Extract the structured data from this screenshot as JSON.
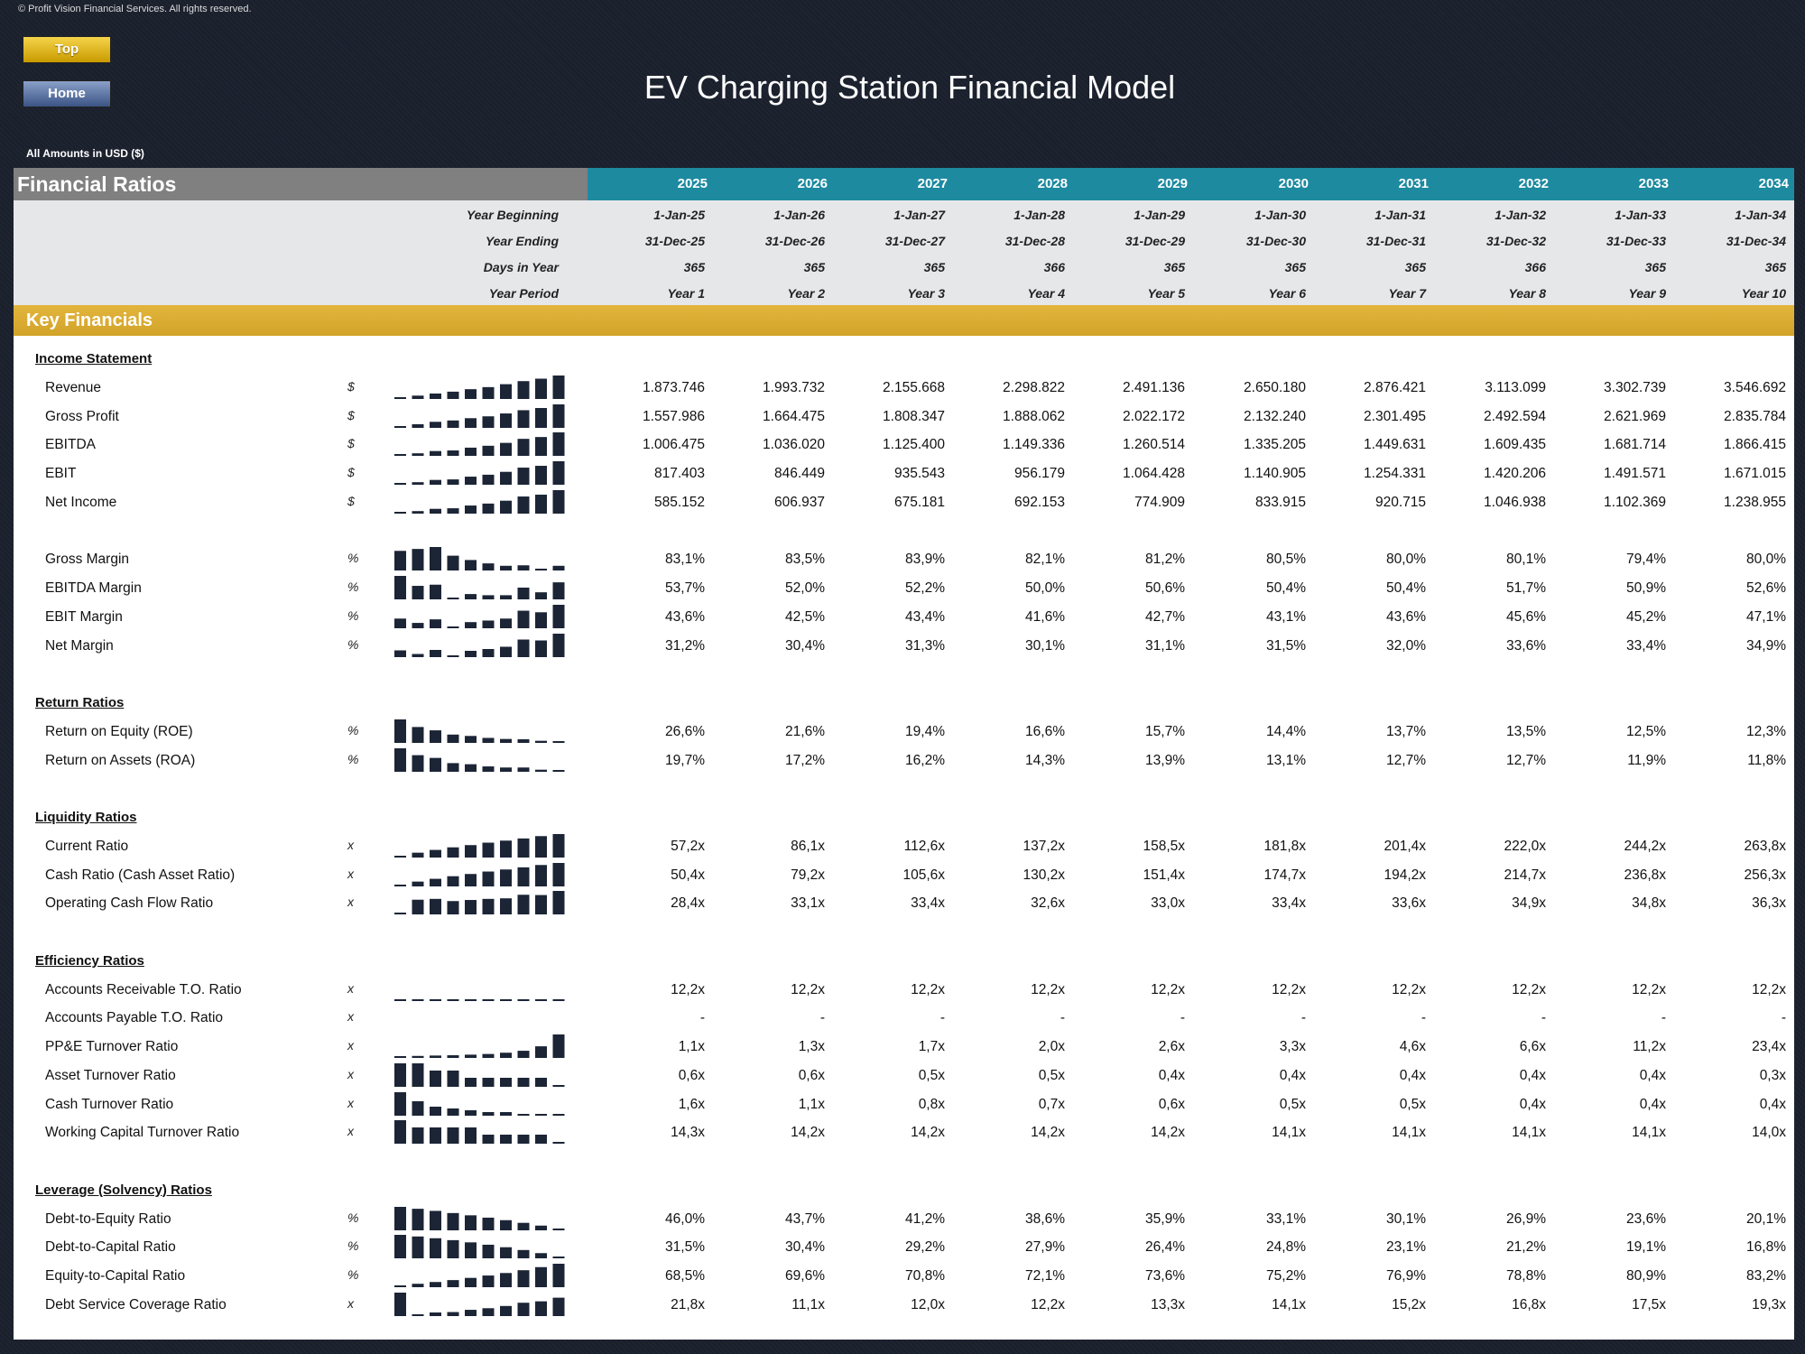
{
  "copyright": "© Profit Vision Financial Services. All rights reserved.",
  "nav": {
    "top_label": "Top",
    "home_label": "Home"
  },
  "title": "EV Charging Station Financial Model",
  "amounts_note": "All Amounts in  USD ($)",
  "header": {
    "title": "Financial Ratios",
    "years": [
      "2025",
      "2026",
      "2027",
      "2028",
      "2029",
      "2030",
      "2031",
      "2032",
      "2033",
      "2034"
    ]
  },
  "date_rows": [
    {
      "label": "Year Beginning",
      "values": [
        "1-Jan-25",
        "1-Jan-26",
        "1-Jan-27",
        "1-Jan-28",
        "1-Jan-29",
        "1-Jan-30",
        "1-Jan-31",
        "1-Jan-32",
        "1-Jan-33",
        "1-Jan-34"
      ]
    },
    {
      "label": "Year Ending",
      "values": [
        "31-Dec-25",
        "31-Dec-26",
        "31-Dec-27",
        "31-Dec-28",
        "31-Dec-29",
        "31-Dec-30",
        "31-Dec-31",
        "31-Dec-32",
        "31-Dec-33",
        "31-Dec-34"
      ]
    },
    {
      "label": "Days in Year",
      "values": [
        "365",
        "365",
        "365",
        "366",
        "365",
        "365",
        "365",
        "366",
        "365",
        "365"
      ]
    },
    {
      "label": "Year Period",
      "values": [
        "Year 1",
        "Year 2",
        "Year 3",
        "Year 4",
        "Year 5",
        "Year 6",
        "Year 7",
        "Year 8",
        "Year 9",
        "Year 10"
      ]
    }
  ],
  "key_financials_label": "Key Financials",
  "sections": [
    {
      "title": "Income Statement",
      "groups": [
        [
          {
            "label": "Revenue",
            "unit": "$",
            "values": [
              "1.873.746",
              "1.993.732",
              "2.155.668",
              "2.298.822",
              "2.491.136",
              "2.650.180",
              "2.876.421",
              "3.113.099",
              "3.302.739",
              "3.546.692"
            ]
          },
          {
            "label": "Gross Profit",
            "unit": "$",
            "values": [
              "1.557.986",
              "1.664.475",
              "1.808.347",
              "1.888.062",
              "2.022.172",
              "2.132.240",
              "2.301.495",
              "2.492.594",
              "2.621.969",
              "2.835.784"
            ]
          },
          {
            "label": "EBITDA",
            "unit": "$",
            "values": [
              "1.006.475",
              "1.036.020",
              "1.125.400",
              "1.149.336",
              "1.260.514",
              "1.335.205",
              "1.449.631",
              "1.609.435",
              "1.681.714",
              "1.866.415"
            ]
          },
          {
            "label": "EBIT",
            "unit": "$",
            "values": [
              "817.403",
              "846.449",
              "935.543",
              "956.179",
              "1.064.428",
              "1.140.905",
              "1.254.331",
              "1.420.206",
              "1.491.571",
              "1.671.015"
            ]
          },
          {
            "label": "Net Income",
            "unit": "$",
            "values": [
              "585.152",
              "606.937",
              "675.181",
              "692.153",
              "774.909",
              "833.915",
              "920.715",
              "1.046.938",
              "1.102.369",
              "1.238.955"
            ]
          }
        ],
        [
          {
            "label": "Gross Margin",
            "unit": "%",
            "values": [
              "83,1%",
              "83,5%",
              "83,9%",
              "82,1%",
              "81,2%",
              "80,5%",
              "80,0%",
              "80,1%",
              "79,4%",
              "80,0%"
            ]
          },
          {
            "label": "EBITDA Margin",
            "unit": "%",
            "values": [
              "53,7%",
              "52,0%",
              "52,2%",
              "50,0%",
              "50,6%",
              "50,4%",
              "50,4%",
              "51,7%",
              "50,9%",
              "52,6%"
            ]
          },
          {
            "label": "EBIT Margin",
            "unit": "%",
            "values": [
              "43,6%",
              "42,5%",
              "43,4%",
              "41,6%",
              "42,7%",
              "43,1%",
              "43,6%",
              "45,6%",
              "45,2%",
              "47,1%"
            ]
          },
          {
            "label": "Net Margin",
            "unit": "%",
            "values": [
              "31,2%",
              "30,4%",
              "31,3%",
              "30,1%",
              "31,1%",
              "31,5%",
              "32,0%",
              "33,6%",
              "33,4%",
              "34,9%"
            ]
          }
        ]
      ]
    },
    {
      "title": "Return Ratios",
      "groups": [
        [
          {
            "label": "Return on Equity (ROE)",
            "unit": "%",
            "values": [
              "26,6%",
              "21,6%",
              "19,4%",
              "16,6%",
              "15,7%",
              "14,4%",
              "13,7%",
              "13,5%",
              "12,5%",
              "12,3%"
            ]
          },
          {
            "label": "Return on Assets (ROA)",
            "unit": "%",
            "values": [
              "19,7%",
              "17,2%",
              "16,2%",
              "14,3%",
              "13,9%",
              "13,1%",
              "12,7%",
              "12,7%",
              "11,9%",
              "11,8%"
            ]
          }
        ]
      ]
    },
    {
      "title": "Liquidity Ratios",
      "groups": [
        [
          {
            "label": "Current Ratio",
            "unit": "x",
            "values": [
              "57,2x",
              "86,1x",
              "112,6x",
              "137,2x",
              "158,5x",
              "181,8x",
              "201,4x",
              "222,0x",
              "244,2x",
              "263,8x"
            ]
          },
          {
            "label": "Cash Ratio (Cash Asset Ratio)",
            "unit": "x",
            "values": [
              "50,4x",
              "79,2x",
              "105,6x",
              "130,2x",
              "151,4x",
              "174,7x",
              "194,2x",
              "214,7x",
              "236,8x",
              "256,3x"
            ]
          },
          {
            "label": "Operating Cash Flow Ratio",
            "unit": "x",
            "values": [
              "28,4x",
              "33,1x",
              "33,4x",
              "32,6x",
              "33,0x",
              "33,4x",
              "33,6x",
              "34,9x",
              "34,8x",
              "36,3x"
            ]
          }
        ]
      ]
    },
    {
      "title": "Efficiency Ratios",
      "groups": [
        [
          {
            "label": "Accounts Receivable T.O. Ratio",
            "unit": "x",
            "values": [
              "12,2x",
              "12,2x",
              "12,2x",
              "12,2x",
              "12,2x",
              "12,2x",
              "12,2x",
              "12,2x",
              "12,2x",
              "12,2x"
            ]
          },
          {
            "label": "Accounts Payable T.O. Ratio",
            "unit": "x",
            "values": [
              "-",
              "-",
              "-",
              "-",
              "-",
              "-",
              "-",
              "-",
              "-",
              "-"
            ]
          },
          {
            "label": "PP&E Turnover Ratio",
            "unit": "x",
            "values": [
              "1,1x",
              "1,3x",
              "1,7x",
              "2,0x",
              "2,6x",
              "3,3x",
              "4,6x",
              "6,6x",
              "11,2x",
              "23,4x"
            ]
          },
          {
            "label": "Asset Turnover Ratio",
            "unit": "x",
            "values": [
              "0,6x",
              "0,6x",
              "0,5x",
              "0,5x",
              "0,4x",
              "0,4x",
              "0,4x",
              "0,4x",
              "0,4x",
              "0,3x"
            ]
          },
          {
            "label": "Cash Turnover Ratio",
            "unit": "x",
            "values": [
              "1,6x",
              "1,1x",
              "0,8x",
              "0,7x",
              "0,6x",
              "0,5x",
              "0,5x",
              "0,4x",
              "0,4x",
              "0,4x"
            ]
          },
          {
            "label": "Working Capital Turnover Ratio",
            "unit": "x",
            "values": [
              "14,3x",
              "14,2x",
              "14,2x",
              "14,2x",
              "14,2x",
              "14,1x",
              "14,1x",
              "14,1x",
              "14,1x",
              "14,0x"
            ]
          }
        ]
      ]
    },
    {
      "title": "Leverage (Solvency) Ratios",
      "groups": [
        [
          {
            "label": "Debt-to-Equity Ratio",
            "unit": "%",
            "values": [
              "46,0%",
              "43,7%",
              "41,2%",
              "38,6%",
              "35,9%",
              "33,1%",
              "30,1%",
              "26,9%",
              "23,6%",
              "20,1%"
            ]
          },
          {
            "label": "Debt-to-Capital Ratio",
            "unit": "%",
            "values": [
              "31,5%",
              "30,4%",
              "29,2%",
              "27,9%",
              "26,4%",
              "24,8%",
              "23,1%",
              "21,2%",
              "19,1%",
              "16,8%"
            ]
          },
          {
            "label": "Equity-to-Capital Ratio",
            "unit": "%",
            "values": [
              "68,5%",
              "69,6%",
              "70,8%",
              "72,1%",
              "73,6%",
              "75,2%",
              "76,9%",
              "78,8%",
              "80,9%",
              "83,2%"
            ]
          },
          {
            "label": "Debt Service Coverage Ratio",
            "unit": "x",
            "values": [
              "21,8x",
              "11,1x",
              "12,0x",
              "12,2x",
              "13,3x",
              "14,1x",
              "15,2x",
              "16,8x",
              "17,5x",
              "19,3x"
            ]
          }
        ]
      ]
    }
  ],
  "colors": {
    "sparkline": "#1c2536",
    "header_teal": "#1d8aa0",
    "header_gray": "#808080",
    "key_gold": "#d9ad33",
    "date_band": "#e6e7e9"
  }
}
